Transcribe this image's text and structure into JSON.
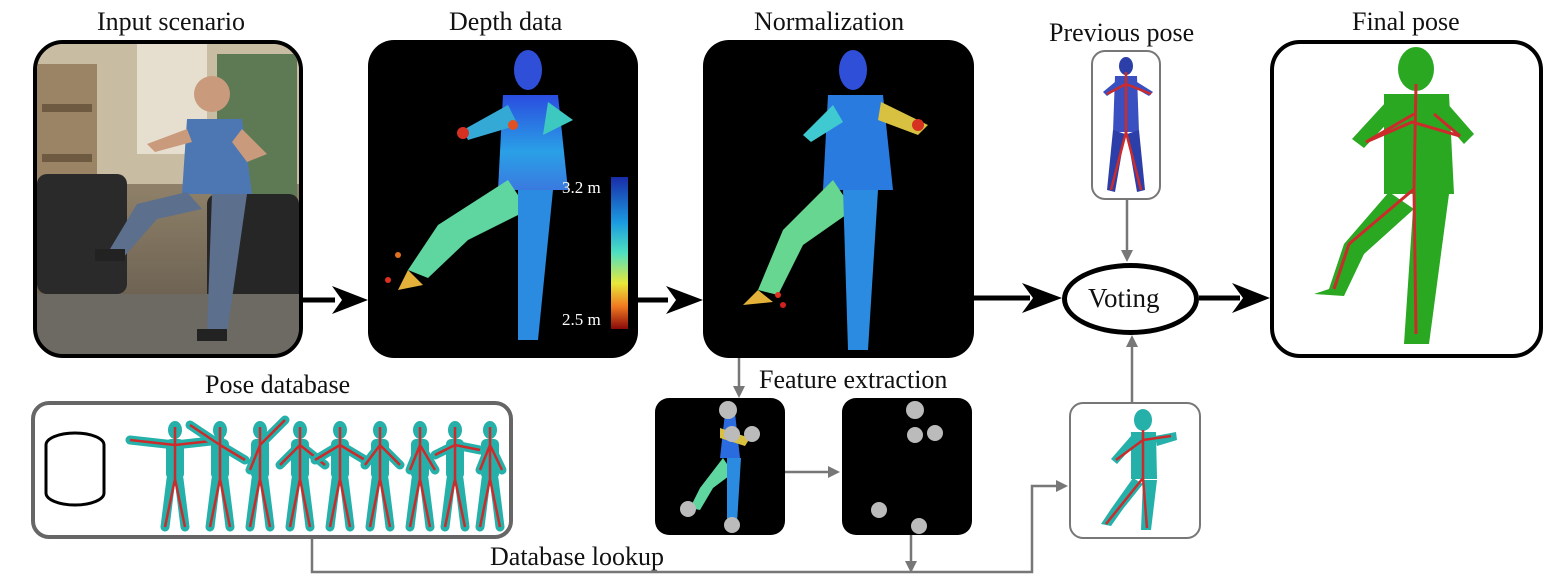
{
  "stages": {
    "input": "Input scenario",
    "depth": "Depth data",
    "normalization": "Normalization",
    "previous": "Previous pose",
    "final": "Final pose",
    "database": "Pose database",
    "feature": "Feature extraction",
    "lookup": "Database lookup"
  },
  "voting": "Voting",
  "colorbar": {
    "max": "3.2 m",
    "min": "2.5 m"
  },
  "colors": {
    "skeleton": "#cc2b2b",
    "final_body": "#2aa822",
    "db_body": "#25b0aa",
    "prev_body": "#2c3fa8",
    "arrow_gray": "#777777"
  },
  "icons": [
    "database-icon",
    "depth-colorbar"
  ]
}
